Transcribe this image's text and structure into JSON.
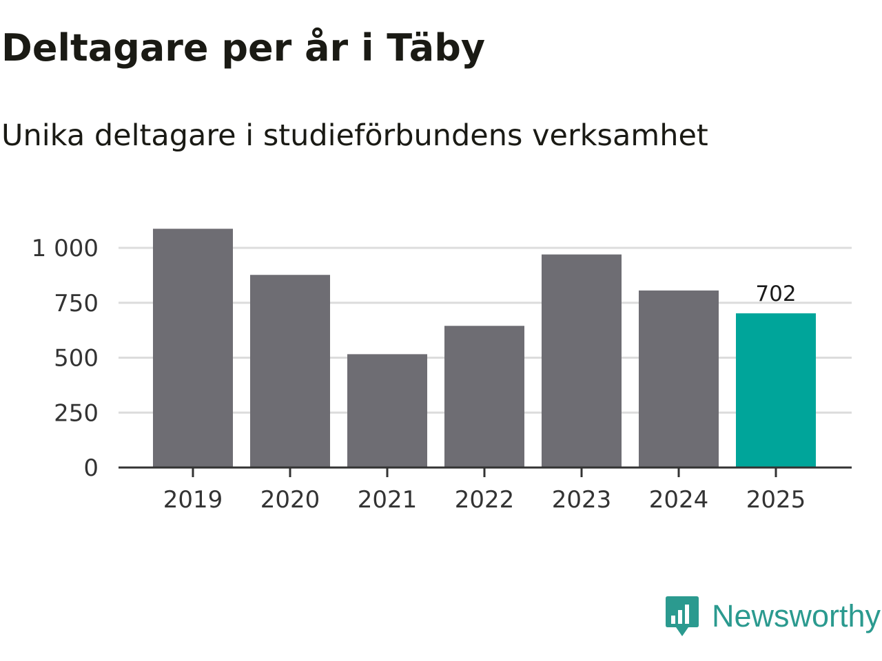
{
  "title": "Deltagare per år i Täby",
  "subtitle": "Unika deltagare i studieförbundens verksamhet",
  "brand": {
    "name": "Newsworthy",
    "icon": "newsworthy-logo-icon",
    "color": "#2b9a8f"
  },
  "chart_data": {
    "type": "bar",
    "title": "Deltagare per år i Täby",
    "subtitle": "Unika deltagare i studieförbundens verksamhet",
    "categories": [
      "2019",
      "2020",
      "2021",
      "2022",
      "2023",
      "2024",
      "2025"
    ],
    "values": [
      1087,
      877,
      516,
      645,
      970,
      806,
      702
    ],
    "ylim": [
      0,
      1100
    ],
    "yticks": [
      0,
      250,
      500,
      750,
      1000
    ],
    "ytick_labels": [
      "0",
      "250",
      "500",
      "750",
      "1 000"
    ],
    "grid": true,
    "bar_color": "#6e6d73",
    "highlight_color": "#00a59a",
    "highlight_index": 6,
    "data_labels": [
      {
        "category": "2025",
        "text": "702"
      }
    ]
  }
}
